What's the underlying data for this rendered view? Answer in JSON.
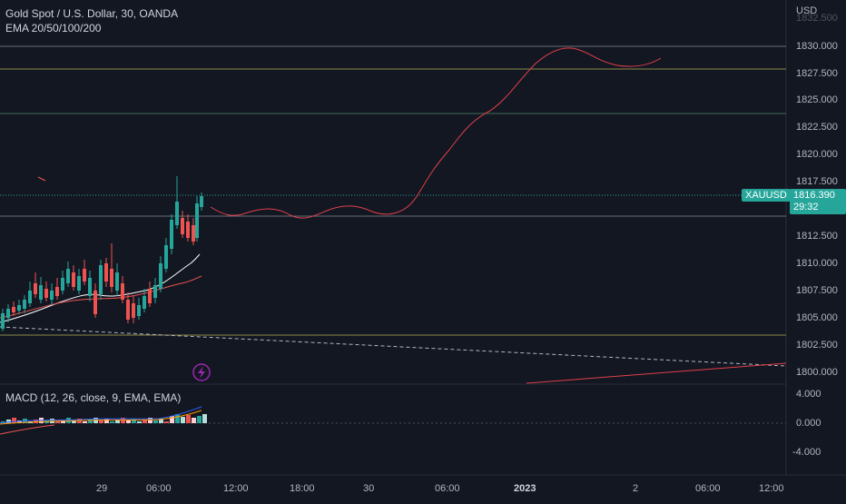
{
  "header": {
    "title": "Gold Spot / U.S. Dollar, 30, OANDA",
    "indicator": "EMA 20/50/100/200",
    "currency": "USD"
  },
  "macd": {
    "label": "MACD (12, 26, close, 9, EMA, EMA)"
  },
  "price_axis": {
    "ticks": [
      "1830.000",
      "1827.500",
      "1825.000",
      "1822.500",
      "1820.000",
      "1817.500",
      "1812.500",
      "1810.000",
      "1807.500",
      "1805.000",
      "1802.500",
      "1800.000"
    ],
    "top_partial": "1832.500"
  },
  "macd_axis": {
    "ticks": [
      "4.000",
      "0.000",
      "-4.000"
    ]
  },
  "time_axis": {
    "ticks": [
      "29",
      "06:00",
      "12:00",
      "18:00",
      "30",
      "06:00",
      "2023",
      "2",
      "06:00",
      "12:00"
    ]
  },
  "current_price": {
    "symbol": "XAUUSD",
    "value": "1816.390",
    "countdown": "29:32"
  },
  "colors": {
    "background": "#131722",
    "up": "#26a69a",
    "down": "#ef5350",
    "current_tag": "#26a69a",
    "projection": "#e0404a",
    "hline_gray": "#787b86",
    "hline_olive": "#8a8a4a",
    "hline_green": "#3f6b55",
    "lightning": "#9c27b0"
  },
  "icons": {
    "alert": "lightning-icon"
  }
}
